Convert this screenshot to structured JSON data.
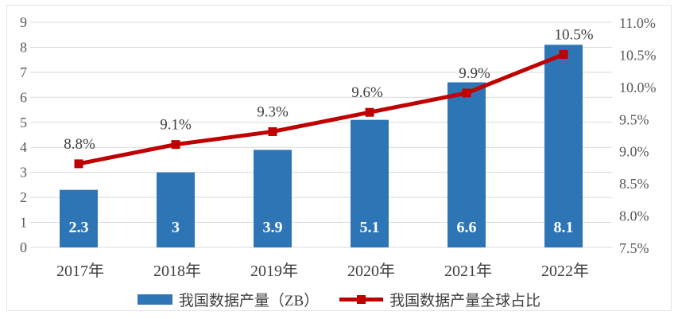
{
  "chart_data": {
    "type": "combo",
    "categories": [
      "2017年",
      "2018年",
      "2019年",
      "2020年",
      "2021年",
      "2022年"
    ],
    "series": [
      {
        "name": "我国数据产量（ZB）",
        "type": "bar",
        "axis": "left",
        "values": [
          2.3,
          3,
          3.9,
          5.1,
          6.6,
          8.1
        ],
        "labels": [
          "2.3",
          "3",
          "3.9",
          "5.1",
          "6.6",
          "8.1"
        ],
        "color": "#2E75B6"
      },
      {
        "name": "我国数据产量全球占比",
        "type": "line",
        "axis": "right",
        "values": [
          8.8,
          9.1,
          9.3,
          9.6,
          9.9,
          10.5
        ],
        "labels": [
          "8.8%",
          "9.1%",
          "9.3%",
          "9.6%",
          "9.9%",
          "10.5%"
        ],
        "color": "#C00000"
      }
    ],
    "left_axis": {
      "min": 0,
      "max": 9,
      "step": 1,
      "ticks": [
        "0",
        "1",
        "2",
        "3",
        "4",
        "5",
        "6",
        "7",
        "8",
        "9"
      ]
    },
    "right_axis": {
      "min": 7.5,
      "max": 11.0,
      "step": 0.5,
      "ticks": [
        "7.5%",
        "8.0%",
        "8.5%",
        "9.0%",
        "9.5%",
        "10.0%",
        "10.5%",
        "11.0%"
      ]
    },
    "grid": "horizontal",
    "legend_position": "bottom",
    "colors": {
      "bar": "#2E75B6",
      "line": "#C00000",
      "gridline": "#D9D9D9",
      "axis_tick_text": "#595959",
      "category_text": "#404040",
      "point_label_text": "#404040",
      "bar_label_text": "#FFFFFF",
      "frame_border": "#E1E5EC"
    }
  }
}
